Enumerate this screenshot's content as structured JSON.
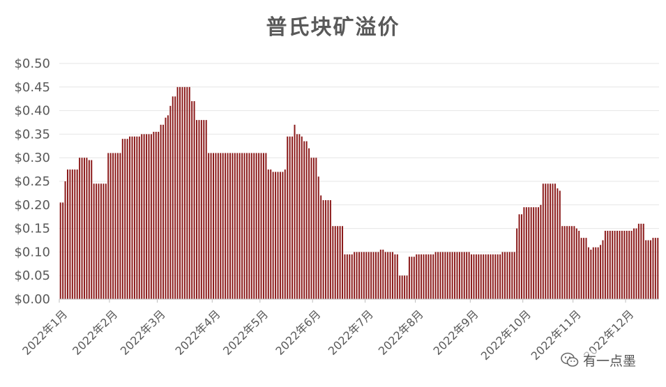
{
  "chart_data": {
    "type": "bar",
    "title": "普氏块矿溢价",
    "ylim": [
      0,
      0.5
    ],
    "y_ticks": [
      "$0.00",
      "$0.05",
      "$0.10",
      "$0.15",
      "$0.20",
      "$0.25",
      "$0.30",
      "$0.35",
      "$0.40",
      "$0.45",
      "$0.50"
    ],
    "y_tick_values": [
      0,
      0.05,
      0.1,
      0.15,
      0.2,
      0.25,
      0.3,
      0.35,
      0.4,
      0.45,
      0.5
    ],
    "x_tick_labels": [
      "2022年1月",
      "2022年2月",
      "2022年3月",
      "2022年4月",
      "2022年5月",
      "2022年6月",
      "2022年7月",
      "2022年8月",
      "2022年9月",
      "2022年10月",
      "2022年11月",
      "2022年12月"
    ],
    "bar_color": "#8b1a1a",
    "grid": true,
    "daily_series": [
      {
        "month": 1,
        "values": [
          0.205,
          0.205,
          0.25,
          0.275,
          0.275,
          0.275,
          0.275,
          0.275,
          0.3,
          0.3,
          0.3,
          0.3,
          0.295,
          0.295,
          0.245,
          0.245,
          0.245,
          0.245,
          0.245,
          0.245,
          0.31
        ]
      },
      {
        "month": 2,
        "values": [
          0.31,
          0.31,
          0.31,
          0.31,
          0.31,
          0.34,
          0.34,
          0.34,
          0.345,
          0.345,
          0.345,
          0.345,
          0.345,
          0.35,
          0.35,
          0.35,
          0.35,
          0.35,
          0.355,
          0.355
        ]
      },
      {
        "month": 3,
        "values": [
          0.355,
          0.37,
          0.37,
          0.385,
          0.39,
          0.41,
          0.43,
          0.43,
          0.45,
          0.45,
          0.45,
          0.45,
          0.45,
          0.45,
          0.42,
          0.42,
          0.38,
          0.38,
          0.38,
          0.38,
          0.38,
          0.31,
          0.31
        ]
      },
      {
        "month": 4,
        "values": [
          0.31,
          0.31,
          0.31,
          0.31,
          0.31,
          0.31,
          0.31,
          0.31,
          0.31,
          0.31,
          0.31,
          0.31,
          0.31,
          0.31,
          0.31,
          0.31,
          0.31,
          0.31,
          0.31,
          0.31
        ]
      },
      {
        "month": 5,
        "values": [
          0.31,
          0.31,
          0.31,
          0.275,
          0.275,
          0.27,
          0.27,
          0.27,
          0.27,
          0.27,
          0.275,
          0.345,
          0.345,
          0.345,
          0.37,
          0.35,
          0.35,
          0.345,
          0.335,
          0.335,
          0.32,
          0.3
        ]
      },
      {
        "month": 6,
        "values": [
          0.3,
          0.3,
          0.26,
          0.22,
          0.21,
          0.21,
          0.21,
          0.21,
          0.155,
          0.155,
          0.155,
          0.155,
          0.155,
          0.095,
          0.095,
          0.095,
          0.095,
          0.1,
          0.1,
          0.1,
          0.1,
          0.1
        ]
      },
      {
        "month": 7,
        "values": [
          0.1,
          0.1,
          0.1,
          0.1,
          0.1,
          0.1,
          0.105,
          0.105,
          0.1,
          0.1,
          0.1,
          0.1,
          0.095,
          0.095,
          0.05,
          0.05,
          0.05,
          0.05,
          0.09,
          0.09,
          0.09
        ]
      },
      {
        "month": 8,
        "values": [
          0.095,
          0.095,
          0.095,
          0.095,
          0.095,
          0.095,
          0.095,
          0.095,
          0.1,
          0.1,
          0.1,
          0.1,
          0.1,
          0.1,
          0.1,
          0.1,
          0.1,
          0.1,
          0.1,
          0.1,
          0.1,
          0.1,
          0.1
        ]
      },
      {
        "month": 9,
        "values": [
          0.095,
          0.095,
          0.095,
          0.095,
          0.095,
          0.095,
          0.095,
          0.095,
          0.095,
          0.095,
          0.095,
          0.095,
          0.095,
          0.1,
          0.1,
          0.1,
          0.1,
          0.1,
          0.1,
          0.15,
          0.18,
          0.18
        ]
      },
      {
        "month": 10,
        "values": [
          0.195,
          0.195,
          0.195,
          0.195,
          0.195,
          0.195,
          0.195,
          0.2,
          0.245,
          0.245,
          0.245,
          0.245,
          0.245,
          0.245,
          0.235,
          0.23,
          0.155,
          0.155,
          0.155,
          0.155,
          0.155
        ]
      },
      {
        "month": 11,
        "values": [
          0.155,
          0.15,
          0.145,
          0.13,
          0.13,
          0.13,
          0.11,
          0.105,
          0.11,
          0.11,
          0.11,
          0.115,
          0.125,
          0.145,
          0.145,
          0.145,
          0.145,
          0.145,
          0.145,
          0.145,
          0.145,
          0.145
        ]
      },
      {
        "month": 12,
        "values": [
          0.145,
          0.145,
          0.145,
          0.15,
          0.15,
          0.16,
          0.16,
          0.16,
          0.125,
          0.125,
          0.125,
          0.13,
          0.13,
          0.13
        ]
      }
    ]
  },
  "watermark": {
    "icon": "wechat-icon",
    "text": "有一点墨"
  }
}
